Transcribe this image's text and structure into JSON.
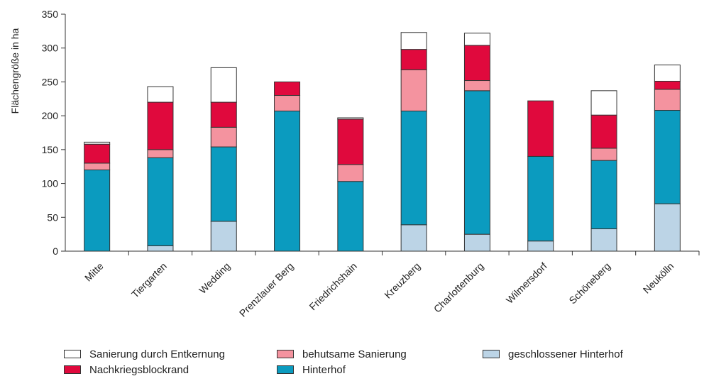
{
  "chart_data": {
    "type": "bar",
    "stacked": true,
    "ylabel": "Flächengröße in ha",
    "ylim": [
      0,
      350
    ],
    "yticks": [
      0,
      50,
      100,
      150,
      200,
      250,
      300,
      350
    ],
    "grid": false,
    "legend_position": "bottom",
    "categories": [
      "Mitte",
      "Tiergarten",
      "Wedding",
      "Prenzlauer Berg",
      "Friedrichshain",
      "Kreuzberg",
      "Charlottenburg",
      "Wilmersdorf",
      "Schöneberg",
      "Neukölln"
    ],
    "series": [
      {
        "name": "geschlossener Hinterhof",
        "color": "#bcd4e6",
        "values": [
          0,
          8,
          44,
          0,
          0,
          39,
          25,
          15,
          33,
          70
        ]
      },
      {
        "name": "Hinterhof",
        "color": "#0b9bbf",
        "values": [
          120,
          130,
          110,
          207,
          103,
          168,
          212,
          125,
          101,
          138
        ]
      },
      {
        "name": "behutsame Sanierung",
        "color": "#f4939f",
        "values": [
          10,
          12,
          29,
          23,
          25,
          61,
          15,
          0,
          18,
          31
        ]
      },
      {
        "name": "Nachkriegsblockrand",
        "color": "#e0093d",
        "values": [
          28,
          70,
          37,
          20,
          67,
          30,
          52,
          82,
          49,
          12
        ]
      },
      {
        "name": "Sanierung durch Entkernung",
        "color": "#ffffff",
        "values": [
          3,
          23,
          51,
          0,
          2,
          25,
          18,
          0,
          36,
          24
        ]
      }
    ]
  },
  "legend": {
    "items": [
      {
        "label": "Sanierung durch Entkernung",
        "color": "#ffffff"
      },
      {
        "label": "behutsame Sanierung",
        "color": "#f4939f"
      },
      {
        "label": "geschlossener Hinterhof",
        "color": "#bcd4e6"
      },
      {
        "label": "Nachkriegsblockrand",
        "color": "#e0093d"
      },
      {
        "label": "Hinterhof",
        "color": "#0b9bbf"
      }
    ]
  }
}
